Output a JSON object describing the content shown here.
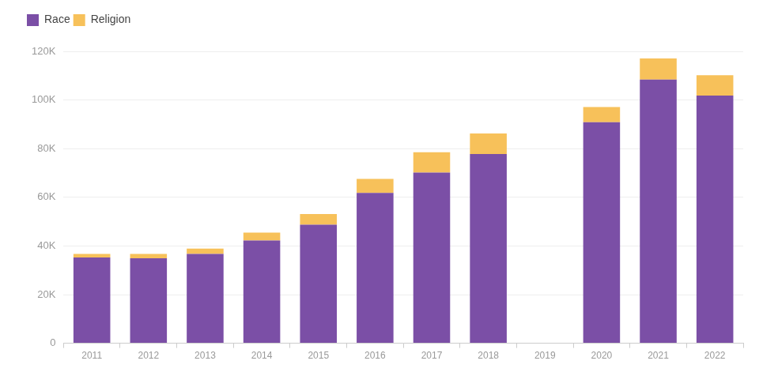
{
  "chart_data": {
    "type": "bar",
    "stacked": true,
    "grid": true,
    "legend": "top-left",
    "categories": [
      "2011",
      "2012",
      "2013",
      "2014",
      "2015",
      "2016",
      "2017",
      "2018",
      "2019",
      "2020",
      "2021",
      "2022"
    ],
    "series": [
      {
        "name": "Race",
        "color": "#7b4fa6",
        "values": [
          35300,
          34900,
          36700,
          42200,
          48700,
          61800,
          70200,
          77800,
          null,
          90900,
          108400,
          101800
        ]
      },
      {
        "name": "Religion",
        "color": "#f7c15a",
        "values": [
          1400,
          1800,
          2200,
          3300,
          4400,
          5800,
          8300,
          8400,
          null,
          6200,
          8700,
          8400
        ]
      }
    ],
    "ylim": [
      0,
      120000
    ],
    "yticks": [
      0,
      {
        "value": 20000,
        "label": "20K"
      },
      {
        "value": 40000,
        "label": "40K"
      },
      {
        "value": 60000,
        "label": "60K"
      },
      {
        "value": 80000,
        "label": "80K"
      },
      {
        "value": 100000,
        "label": "100K"
      },
      {
        "value": 120000,
        "label": "120K"
      }
    ]
  }
}
